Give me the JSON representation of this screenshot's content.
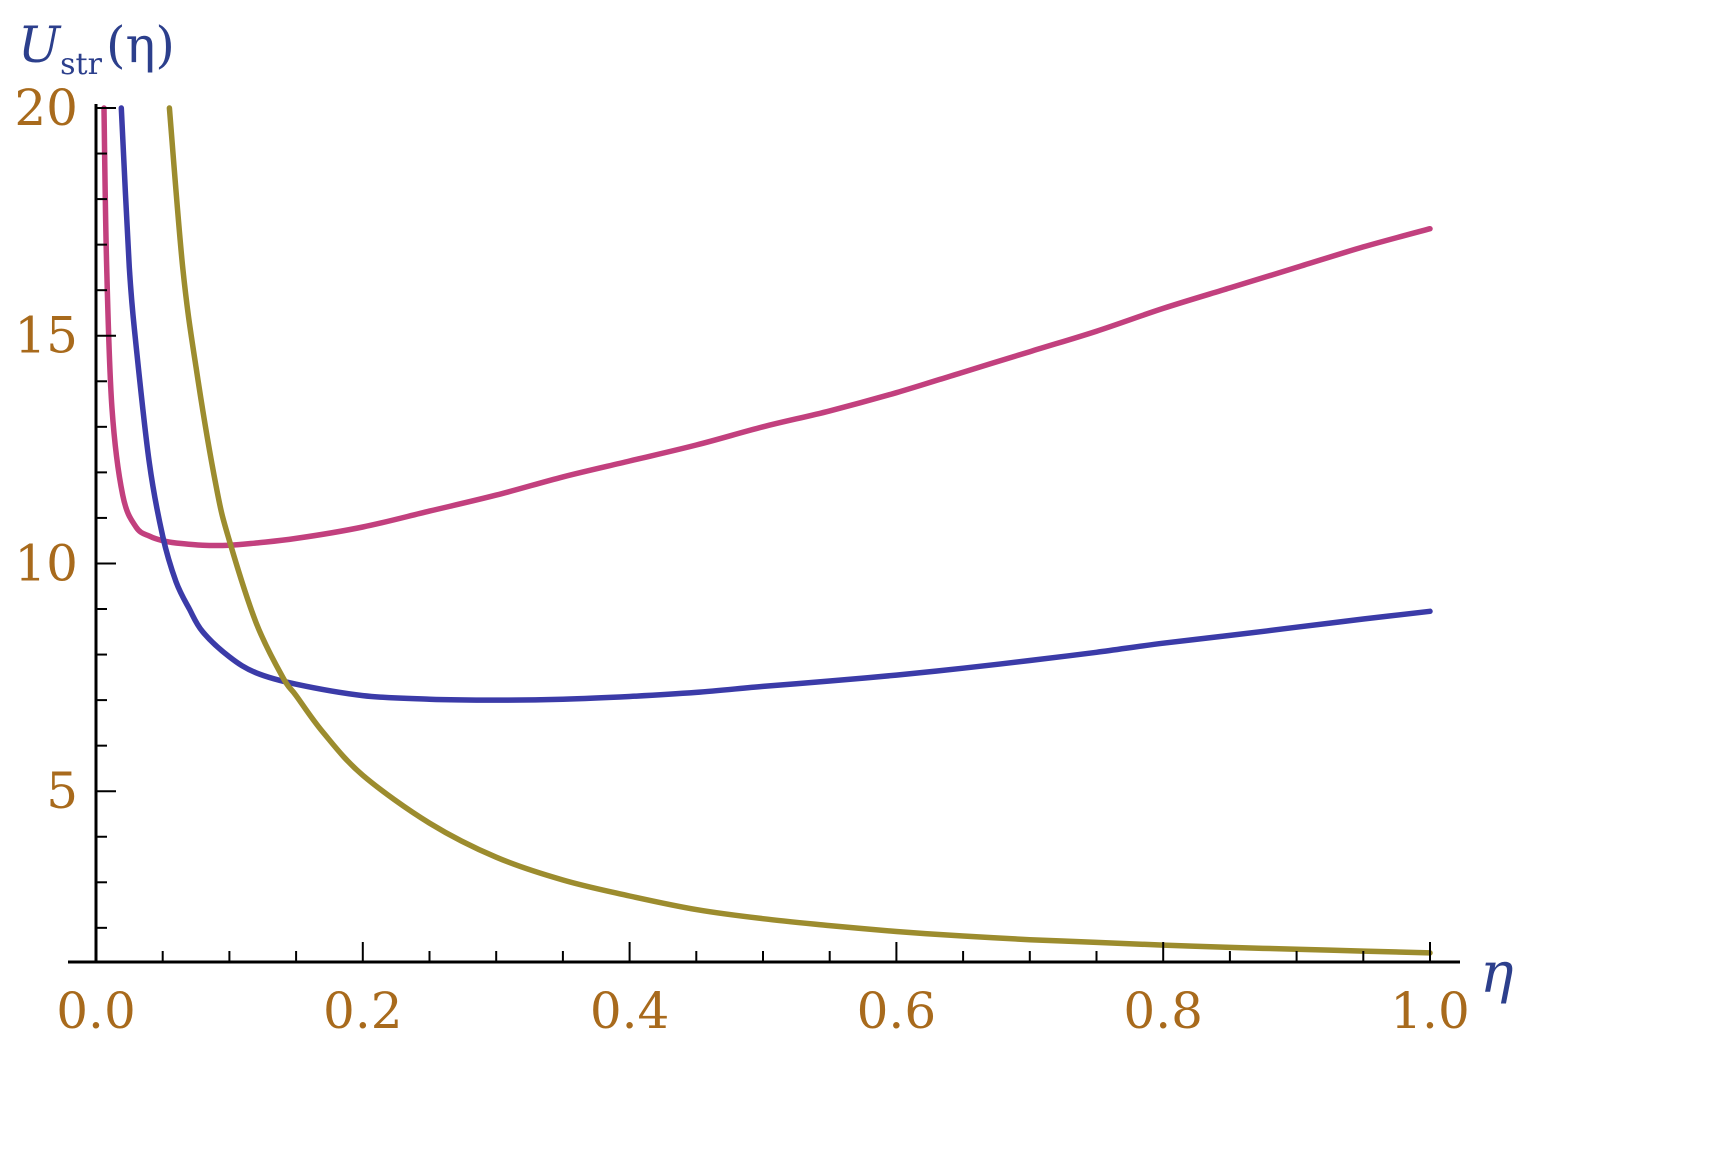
{
  "chart_data": {
    "type": "line",
    "title": "",
    "xlabel": "η",
    "ylabel": {
      "base": "U",
      "subscript": "str",
      "argument": "(η)"
    },
    "xlim": [
      0,
      1
    ],
    "ylim": [
      1.25,
      20
    ],
    "x_ticks": [
      {
        "value": 0.0,
        "label": "0.0"
      },
      {
        "value": 0.2,
        "label": "0.2"
      },
      {
        "value": 0.4,
        "label": "0.4"
      },
      {
        "value": 0.6,
        "label": "0.6"
      },
      {
        "value": 0.8,
        "label": "0.8"
      },
      {
        "value": 1.0,
        "label": "1.0"
      }
    ],
    "x_minor_step": 0.05,
    "y_ticks": [
      {
        "value": 5,
        "label": "5"
      },
      {
        "value": 10,
        "label": "10"
      },
      {
        "value": 15,
        "label": "15"
      },
      {
        "value": 20,
        "label": "20"
      }
    ],
    "y_minor_step": 1,
    "grid": false,
    "legend": "none",
    "series": [
      {
        "color": "#c2407e",
        "points": [
          [
            0.006,
            20
          ],
          [
            0.008,
            16.5
          ],
          [
            0.012,
            13.4
          ],
          [
            0.02,
            11.5
          ],
          [
            0.03,
            10.8
          ],
          [
            0.04,
            10.6
          ],
          [
            0.05,
            10.5
          ],
          [
            0.06,
            10.45
          ],
          [
            0.08,
            10.4
          ],
          [
            0.1,
            10.4
          ],
          [
            0.12,
            10.45
          ],
          [
            0.15,
            10.55
          ],
          [
            0.2,
            10.8
          ],
          [
            0.25,
            11.15
          ],
          [
            0.3,
            11.5
          ],
          [
            0.35,
            11.9
          ],
          [
            0.4,
            12.25
          ],
          [
            0.45,
            12.6
          ],
          [
            0.5,
            13.0
          ],
          [
            0.55,
            13.35
          ],
          [
            0.6,
            13.75
          ],
          [
            0.65,
            14.2
          ],
          [
            0.7,
            14.65
          ],
          [
            0.75,
            15.1
          ],
          [
            0.8,
            15.6
          ],
          [
            0.85,
            16.05
          ],
          [
            0.9,
            16.5
          ],
          [
            0.95,
            16.95
          ],
          [
            1.0,
            17.35
          ]
        ]
      },
      {
        "color": "#3b3ba8",
        "points": [
          [
            0.019,
            20
          ],
          [
            0.025,
            16.5
          ],
          [
            0.03,
            14.8
          ],
          [
            0.04,
            12.2
          ],
          [
            0.05,
            10.6
          ],
          [
            0.06,
            9.6
          ],
          [
            0.07,
            9.0
          ],
          [
            0.08,
            8.5
          ],
          [
            0.1,
            7.95
          ],
          [
            0.12,
            7.6
          ],
          [
            0.15,
            7.35
          ],
          [
            0.2,
            7.1
          ],
          [
            0.25,
            7.02
          ],
          [
            0.3,
            7.0
          ],
          [
            0.35,
            7.02
          ],
          [
            0.4,
            7.08
          ],
          [
            0.45,
            7.17
          ],
          [
            0.5,
            7.3
          ],
          [
            0.55,
            7.42
          ],
          [
            0.6,
            7.55
          ],
          [
            0.65,
            7.7
          ],
          [
            0.7,
            7.87
          ],
          [
            0.75,
            8.05
          ],
          [
            0.8,
            8.25
          ],
          [
            0.85,
            8.42
          ],
          [
            0.9,
            8.6
          ],
          [
            0.95,
            8.78
          ],
          [
            1.0,
            8.95
          ]
        ]
      },
      {
        "color": "#9c8c2e",
        "points": [
          [
            0.055,
            20
          ],
          [
            0.065,
            16.5
          ],
          [
            0.075,
            14.3
          ],
          [
            0.09,
            11.7
          ],
          [
            0.1,
            10.5
          ],
          [
            0.12,
            8.7
          ],
          [
            0.14,
            7.5
          ],
          [
            0.15,
            7.1
          ],
          [
            0.17,
            6.3
          ],
          [
            0.2,
            5.35
          ],
          [
            0.25,
            4.3
          ],
          [
            0.3,
            3.55
          ],
          [
            0.35,
            3.05
          ],
          [
            0.4,
            2.7
          ],
          [
            0.45,
            2.4
          ],
          [
            0.5,
            2.2
          ],
          [
            0.55,
            2.05
          ],
          [
            0.6,
            1.92
          ],
          [
            0.65,
            1.82
          ],
          [
            0.7,
            1.74
          ],
          [
            0.75,
            1.68
          ],
          [
            0.8,
            1.62
          ],
          [
            0.85,
            1.57
          ],
          [
            0.9,
            1.53
          ],
          [
            0.95,
            1.49
          ],
          [
            1.0,
            1.45
          ]
        ]
      }
    ]
  }
}
